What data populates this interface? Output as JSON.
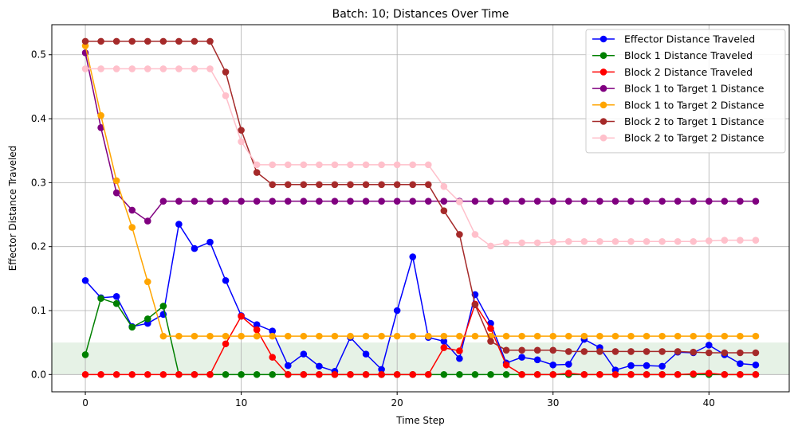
{
  "chart_data": {
    "type": "line",
    "title": "Batch: 10; Distances Over Time",
    "xlabel": "Time Step",
    "ylabel": "Effector Distance Traveled",
    "xlim": [
      -2.15,
      45.15
    ],
    "ylim": [
      -0.027,
      0.547
    ],
    "xticks": [
      0,
      10,
      20,
      30,
      40
    ],
    "yticks": [
      0.0,
      0.1,
      0.2,
      0.3,
      0.4,
      0.5
    ],
    "ytick_labels": [
      "0.0",
      "0.1",
      "0.2",
      "0.3",
      "0.4",
      "0.5"
    ],
    "grid": true,
    "legend_position": "top-right",
    "shaded_band": {
      "y0": 0.0,
      "y1": 0.05,
      "color": "#e6f2e6"
    },
    "x": [
      0,
      1,
      2,
      3,
      4,
      5,
      6,
      7,
      8,
      9,
      10,
      11,
      12,
      13,
      14,
      15,
      16,
      17,
      18,
      19,
      20,
      21,
      22,
      23,
      24,
      25,
      26,
      27,
      28,
      29,
      30,
      31,
      32,
      33,
      34,
      35,
      36,
      37,
      38,
      39,
      40,
      41,
      42,
      43
    ],
    "series": [
      {
        "name": "Effector Distance Traveled",
        "color": "#0000ff",
        "values": [
          0.147,
          0.12,
          0.122,
          0.075,
          0.08,
          0.094,
          0.235,
          0.197,
          0.207,
          0.147,
          0.092,
          0.078,
          0.068,
          0.014,
          0.032,
          0.013,
          0.005,
          0.058,
          0.032,
          0.008,
          0.1,
          0.184,
          0.058,
          0.052,
          0.025,
          0.125,
          0.08,
          0.018,
          0.027,
          0.023,
          0.015,
          0.016,
          0.055,
          0.042,
          0.007,
          0.014,
          0.014,
          0.013,
          0.035,
          0.034,
          0.046,
          0.031,
          0.017,
          0.015
        ]
      },
      {
        "name": "Block 1 Distance Traveled",
        "color": "#008000",
        "values": [
          0.031,
          0.119,
          0.111,
          0.074,
          0.087,
          0.107,
          0.0,
          0.0,
          0.0,
          0.0,
          0.0,
          0.0,
          0.0,
          0.0,
          0.0,
          0.0,
          0.0,
          0.0,
          0.0,
          0.0,
          0.0,
          0.0,
          0.0,
          0.0,
          0.0,
          0.0,
          0.0,
          0.0,
          0.0,
          0.0,
          0.0,
          0.0,
          0.0,
          0.0,
          0.0,
          0.0,
          0.0,
          0.0,
          0.0,
          0.0,
          0.0,
          0.0,
          0.0,
          0.0
        ]
      },
      {
        "name": "Block 2 Distance Traveled",
        "color": "#ff0000",
        "values": [
          0.0,
          0.0,
          0.0,
          0.0,
          0.0,
          0.0,
          0.0,
          0.0,
          0.0,
          0.048,
          0.091,
          0.07,
          0.027,
          0.0,
          0.0,
          0.0,
          0.0,
          0.0,
          0.0,
          0.0,
          0.0,
          0.0,
          0.0,
          0.042,
          0.037,
          0.11,
          0.072,
          0.015,
          0.0,
          0.0,
          0.0,
          0.002,
          0.0,
          0.0,
          0.0,
          0.0,
          0.0,
          0.0,
          0.0,
          0.001,
          0.002,
          0.0,
          0.0,
          0.0
        ]
      },
      {
        "name": "Block 1 to Target 1 Distance",
        "color": "#800080",
        "values": [
          0.503,
          0.386,
          0.284,
          0.257,
          0.24,
          0.271,
          0.271,
          0.271,
          0.271,
          0.271,
          0.271,
          0.271,
          0.271,
          0.271,
          0.271,
          0.271,
          0.271,
          0.271,
          0.271,
          0.271,
          0.271,
          0.271,
          0.271,
          0.271,
          0.271,
          0.271,
          0.271,
          0.271,
          0.271,
          0.271,
          0.271,
          0.271,
          0.271,
          0.271,
          0.271,
          0.271,
          0.271,
          0.271,
          0.271,
          0.271,
          0.271,
          0.271,
          0.271,
          0.271
        ]
      },
      {
        "name": "Block 1 to Target 2 Distance",
        "color": "#ffa500",
        "values": [
          0.514,
          0.405,
          0.303,
          0.23,
          0.145,
          0.06,
          0.06,
          0.06,
          0.06,
          0.06,
          0.06,
          0.06,
          0.06,
          0.06,
          0.06,
          0.06,
          0.06,
          0.06,
          0.06,
          0.06,
          0.06,
          0.06,
          0.06,
          0.06,
          0.06,
          0.06,
          0.06,
          0.06,
          0.06,
          0.06,
          0.06,
          0.06,
          0.06,
          0.06,
          0.06,
          0.06,
          0.06,
          0.06,
          0.06,
          0.06,
          0.06,
          0.06,
          0.06,
          0.06
        ]
      },
      {
        "name": "Block 2 to Target 1 Distance",
        "color": "#a52a2a",
        "values": [
          0.521,
          0.521,
          0.521,
          0.521,
          0.521,
          0.521,
          0.521,
          0.521,
          0.521,
          0.473,
          0.382,
          0.316,
          0.297,
          0.297,
          0.297,
          0.297,
          0.297,
          0.297,
          0.297,
          0.297,
          0.297,
          0.297,
          0.297,
          0.256,
          0.219,
          0.109,
          0.052,
          0.038,
          0.038,
          0.038,
          0.038,
          0.036,
          0.036,
          0.036,
          0.036,
          0.036,
          0.036,
          0.036,
          0.036,
          0.035,
          0.034,
          0.034,
          0.034,
          0.034
        ]
      },
      {
        "name": "Block 2 to Target 2 Distance",
        "color": "#ffc0cb",
        "values": [
          0.478,
          0.478,
          0.478,
          0.478,
          0.478,
          0.478,
          0.478,
          0.478,
          0.478,
          0.436,
          0.364,
          0.328,
          0.328,
          0.328,
          0.328,
          0.328,
          0.328,
          0.328,
          0.328,
          0.328,
          0.328,
          0.328,
          0.328,
          0.294,
          0.27,
          0.219,
          0.201,
          0.206,
          0.206,
          0.206,
          0.207,
          0.208,
          0.208,
          0.208,
          0.208,
          0.208,
          0.208,
          0.208,
          0.208,
          0.208,
          0.209,
          0.21,
          0.21,
          0.21
        ]
      }
    ]
  }
}
